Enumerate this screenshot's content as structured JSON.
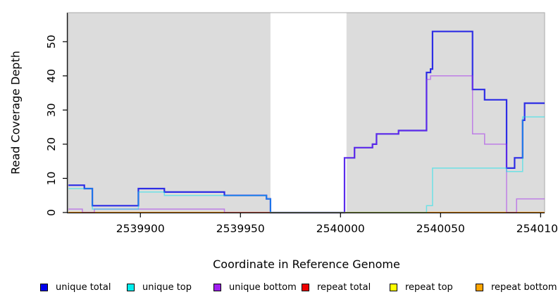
{
  "chart_data": {
    "type": "line",
    "subtype": "step-coverage",
    "title": "",
    "xlabel": "Coordinate in Reference Genome",
    "ylabel": "Read Coverage Depth",
    "xlim": [
      2539864,
      2540102
    ],
    "ylim": [
      0,
      58.5
    ],
    "x_ticks": [
      "2539900",
      "2539950",
      "2540000",
      "2540050",
      "2540100"
    ],
    "x_tick_values": [
      2539900,
      2539950,
      2540000,
      2540050,
      2540100
    ],
    "y_ticks": [
      "0",
      "10",
      "20",
      "30",
      "40",
      "50"
    ],
    "y_tick_values": [
      0,
      10,
      20,
      30,
      40,
      50
    ],
    "grid": "off",
    "legend_position": "bottom",
    "panel_bg": "#dcdcdc",
    "panel_border": "#a8a8a8",
    "gap_band": {
      "x0": 2539965,
      "x1": 2540003,
      "color": "#ffffff"
    },
    "series": [
      {
        "name": "unique total",
        "color": "#1414e6",
        "alpha": 0.88,
        "width": 2.2,
        "points": [
          [
            2539864,
            8
          ],
          [
            2539872,
            7
          ],
          [
            2539876,
            2
          ],
          [
            2539899,
            7
          ],
          [
            2539912,
            6
          ],
          [
            2539942,
            5
          ],
          [
            2539963,
            4
          ],
          [
            2539965,
            0
          ],
          [
            2540002,
            16
          ],
          [
            2540007,
            19
          ],
          [
            2540016,
            20
          ],
          [
            2540018,
            23
          ],
          [
            2540029,
            24
          ],
          [
            2540043,
            41
          ],
          [
            2540045,
            42
          ],
          [
            2540046,
            53
          ],
          [
            2540066,
            36
          ],
          [
            2540072,
            33
          ],
          [
            2540083,
            13
          ],
          [
            2540087,
            16
          ],
          [
            2540091,
            27
          ],
          [
            2540092,
            32
          ],
          [
            2540102,
            32
          ]
        ]
      },
      {
        "name": "repeat total",
        "color": "#ee2c2c",
        "alpha": 0.5,
        "width": 1.5,
        "points": [
          [
            2539864,
            0
          ],
          [
            2540102,
            0
          ]
        ]
      },
      {
        "name": "repeat top",
        "color": "#f5f500",
        "alpha": 0.6,
        "width": 1.5,
        "points": [
          [
            2539864,
            0
          ],
          [
            2540102,
            0
          ]
        ]
      },
      {
        "name": "repeat bottom",
        "color": "#ff9e0f",
        "alpha": 1,
        "width": 2,
        "points": [
          [
            2539864,
            0
          ],
          [
            2540102,
            0
          ]
        ]
      },
      {
        "name": "unique bottom",
        "color": "#a020f0",
        "alpha": 0.5,
        "width": 1.5,
        "points": [
          [
            2539864,
            1
          ],
          [
            2539871,
            0
          ],
          [
            2539877,
            1
          ],
          [
            2539942,
            0
          ],
          [
            2540002,
            16
          ],
          [
            2540007,
            19
          ],
          [
            2540016,
            20
          ],
          [
            2540018,
            23
          ],
          [
            2540029,
            24
          ],
          [
            2540043,
            39
          ],
          [
            2540045,
            40
          ],
          [
            2540066,
            23
          ],
          [
            2540072,
            20
          ],
          [
            2540083,
            0
          ],
          [
            2540088,
            4
          ],
          [
            2540102,
            4
          ]
        ]
      },
      {
        "name": "unique top",
        "color": "#00e5ee",
        "alpha": 0.5,
        "width": 1.5,
        "points": [
          [
            2539864,
            7
          ],
          [
            2539876,
            1
          ],
          [
            2539899,
            6
          ],
          [
            2539912,
            5
          ],
          [
            2539963,
            4
          ],
          [
            2539965,
            0
          ],
          [
            2540043,
            2
          ],
          [
            2540046,
            13
          ],
          [
            2540083,
            12
          ],
          [
            2540091,
            28
          ],
          [
            2540102,
            28
          ]
        ]
      }
    ],
    "legend": [
      {
        "label": "unique total",
        "color": "#0000ee"
      },
      {
        "label": "unique top",
        "color": "#00eeee"
      },
      {
        "label": "unique bottom",
        "color": "#a020f0"
      },
      {
        "label": "repeat total",
        "color": "#ee0000"
      },
      {
        "label": "repeat top",
        "color": "#ffff00"
      },
      {
        "label": "repeat bottom",
        "color": "#ffa500"
      }
    ]
  }
}
